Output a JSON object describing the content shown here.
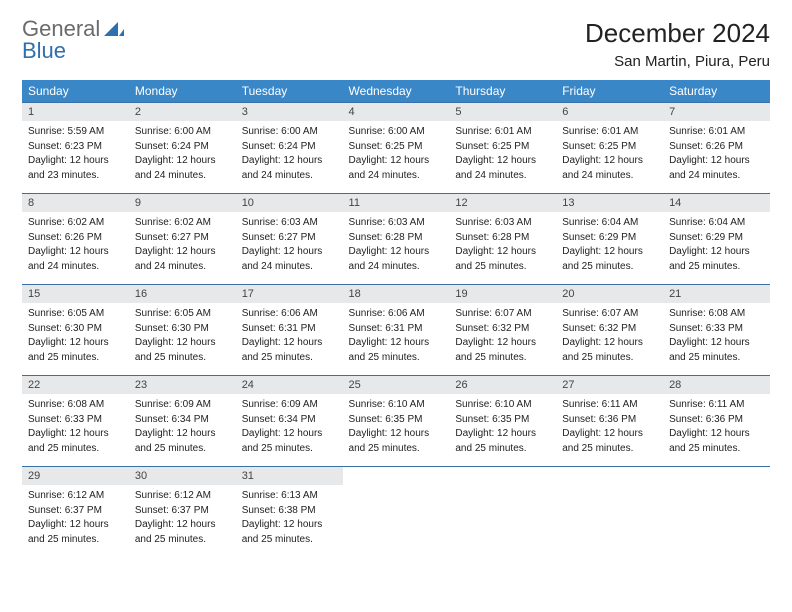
{
  "logo": {
    "part1": "General",
    "part2": "Blue"
  },
  "title": "December 2024",
  "subtitle": "San Martin, Piura, Peru",
  "colors": {
    "header_bg": "#3a87c8",
    "header_text": "#ffffff",
    "daynum_bg": "#e6e8ea",
    "row_border": "#3a6fa8",
    "logo_gray": "#6b6b6b",
    "logo_blue": "#2f6fb0"
  },
  "day_headers": [
    "Sunday",
    "Monday",
    "Tuesday",
    "Wednesday",
    "Thursday",
    "Friday",
    "Saturday"
  ],
  "weeks": [
    [
      {
        "n": "1",
        "sr": "Sunrise: 5:59 AM",
        "ss": "Sunset: 6:23 PM",
        "d1": "Daylight: 12 hours",
        "d2": "and 23 minutes."
      },
      {
        "n": "2",
        "sr": "Sunrise: 6:00 AM",
        "ss": "Sunset: 6:24 PM",
        "d1": "Daylight: 12 hours",
        "d2": "and 24 minutes."
      },
      {
        "n": "3",
        "sr": "Sunrise: 6:00 AM",
        "ss": "Sunset: 6:24 PM",
        "d1": "Daylight: 12 hours",
        "d2": "and 24 minutes."
      },
      {
        "n": "4",
        "sr": "Sunrise: 6:00 AM",
        "ss": "Sunset: 6:25 PM",
        "d1": "Daylight: 12 hours",
        "d2": "and 24 minutes."
      },
      {
        "n": "5",
        "sr": "Sunrise: 6:01 AM",
        "ss": "Sunset: 6:25 PM",
        "d1": "Daylight: 12 hours",
        "d2": "and 24 minutes."
      },
      {
        "n": "6",
        "sr": "Sunrise: 6:01 AM",
        "ss": "Sunset: 6:25 PM",
        "d1": "Daylight: 12 hours",
        "d2": "and 24 minutes."
      },
      {
        "n": "7",
        "sr": "Sunrise: 6:01 AM",
        "ss": "Sunset: 6:26 PM",
        "d1": "Daylight: 12 hours",
        "d2": "and 24 minutes."
      }
    ],
    [
      {
        "n": "8",
        "sr": "Sunrise: 6:02 AM",
        "ss": "Sunset: 6:26 PM",
        "d1": "Daylight: 12 hours",
        "d2": "and 24 minutes."
      },
      {
        "n": "9",
        "sr": "Sunrise: 6:02 AM",
        "ss": "Sunset: 6:27 PM",
        "d1": "Daylight: 12 hours",
        "d2": "and 24 minutes."
      },
      {
        "n": "10",
        "sr": "Sunrise: 6:03 AM",
        "ss": "Sunset: 6:27 PM",
        "d1": "Daylight: 12 hours",
        "d2": "and 24 minutes."
      },
      {
        "n": "11",
        "sr": "Sunrise: 6:03 AM",
        "ss": "Sunset: 6:28 PM",
        "d1": "Daylight: 12 hours",
        "d2": "and 24 minutes."
      },
      {
        "n": "12",
        "sr": "Sunrise: 6:03 AM",
        "ss": "Sunset: 6:28 PM",
        "d1": "Daylight: 12 hours",
        "d2": "and 25 minutes."
      },
      {
        "n": "13",
        "sr": "Sunrise: 6:04 AM",
        "ss": "Sunset: 6:29 PM",
        "d1": "Daylight: 12 hours",
        "d2": "and 25 minutes."
      },
      {
        "n": "14",
        "sr": "Sunrise: 6:04 AM",
        "ss": "Sunset: 6:29 PM",
        "d1": "Daylight: 12 hours",
        "d2": "and 25 minutes."
      }
    ],
    [
      {
        "n": "15",
        "sr": "Sunrise: 6:05 AM",
        "ss": "Sunset: 6:30 PM",
        "d1": "Daylight: 12 hours",
        "d2": "and 25 minutes."
      },
      {
        "n": "16",
        "sr": "Sunrise: 6:05 AM",
        "ss": "Sunset: 6:30 PM",
        "d1": "Daylight: 12 hours",
        "d2": "and 25 minutes."
      },
      {
        "n": "17",
        "sr": "Sunrise: 6:06 AM",
        "ss": "Sunset: 6:31 PM",
        "d1": "Daylight: 12 hours",
        "d2": "and 25 minutes."
      },
      {
        "n": "18",
        "sr": "Sunrise: 6:06 AM",
        "ss": "Sunset: 6:31 PM",
        "d1": "Daylight: 12 hours",
        "d2": "and 25 minutes."
      },
      {
        "n": "19",
        "sr": "Sunrise: 6:07 AM",
        "ss": "Sunset: 6:32 PM",
        "d1": "Daylight: 12 hours",
        "d2": "and 25 minutes."
      },
      {
        "n": "20",
        "sr": "Sunrise: 6:07 AM",
        "ss": "Sunset: 6:32 PM",
        "d1": "Daylight: 12 hours",
        "d2": "and 25 minutes."
      },
      {
        "n": "21",
        "sr": "Sunrise: 6:08 AM",
        "ss": "Sunset: 6:33 PM",
        "d1": "Daylight: 12 hours",
        "d2": "and 25 minutes."
      }
    ],
    [
      {
        "n": "22",
        "sr": "Sunrise: 6:08 AM",
        "ss": "Sunset: 6:33 PM",
        "d1": "Daylight: 12 hours",
        "d2": "and 25 minutes."
      },
      {
        "n": "23",
        "sr": "Sunrise: 6:09 AM",
        "ss": "Sunset: 6:34 PM",
        "d1": "Daylight: 12 hours",
        "d2": "and 25 minutes."
      },
      {
        "n": "24",
        "sr": "Sunrise: 6:09 AM",
        "ss": "Sunset: 6:34 PM",
        "d1": "Daylight: 12 hours",
        "d2": "and 25 minutes."
      },
      {
        "n": "25",
        "sr": "Sunrise: 6:10 AM",
        "ss": "Sunset: 6:35 PM",
        "d1": "Daylight: 12 hours",
        "d2": "and 25 minutes."
      },
      {
        "n": "26",
        "sr": "Sunrise: 6:10 AM",
        "ss": "Sunset: 6:35 PM",
        "d1": "Daylight: 12 hours",
        "d2": "and 25 minutes."
      },
      {
        "n": "27",
        "sr": "Sunrise: 6:11 AM",
        "ss": "Sunset: 6:36 PM",
        "d1": "Daylight: 12 hours",
        "d2": "and 25 minutes."
      },
      {
        "n": "28",
        "sr": "Sunrise: 6:11 AM",
        "ss": "Sunset: 6:36 PM",
        "d1": "Daylight: 12 hours",
        "d2": "and 25 minutes."
      }
    ],
    [
      {
        "n": "29",
        "sr": "Sunrise: 6:12 AM",
        "ss": "Sunset: 6:37 PM",
        "d1": "Daylight: 12 hours",
        "d2": "and 25 minutes."
      },
      {
        "n": "30",
        "sr": "Sunrise: 6:12 AM",
        "ss": "Sunset: 6:37 PM",
        "d1": "Daylight: 12 hours",
        "d2": "and 25 minutes."
      },
      {
        "n": "31",
        "sr": "Sunrise: 6:13 AM",
        "ss": "Sunset: 6:38 PM",
        "d1": "Daylight: 12 hours",
        "d2": "and 25 minutes."
      },
      null,
      null,
      null,
      null
    ]
  ]
}
